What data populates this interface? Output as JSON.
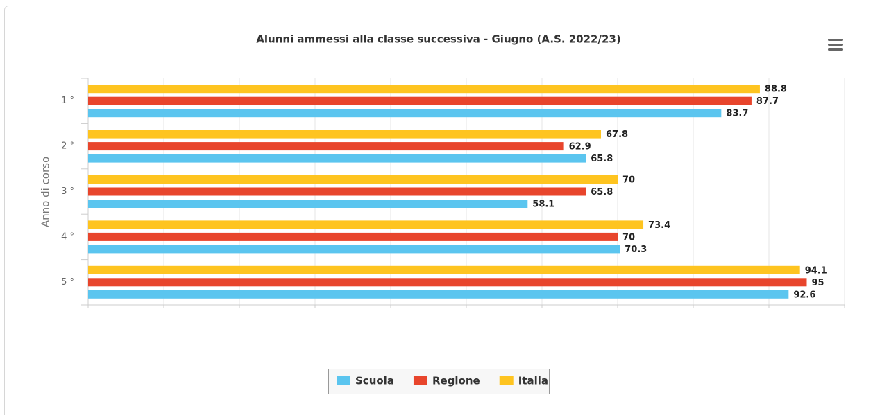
{
  "chart_data": {
    "type": "bar",
    "orientation": "horizontal",
    "title": "Alunni ammessi alla classe successiva - Giugno (A.S. 2022/23)",
    "y_label": "Anno di corso",
    "categories": [
      "1 °",
      "2 °",
      "3 °",
      "4 °",
      "5 °"
    ],
    "series": [
      {
        "name": "Scuola",
        "color": "#5bc5ef",
        "values": [
          83.7,
          65.8,
          58.1,
          70.3,
          92.6
        ]
      },
      {
        "name": "Regione",
        "color": "#e8452c",
        "values": [
          87.7,
          62.9,
          65.8,
          70,
          95
        ]
      },
      {
        "name": "Italia",
        "color": "#fec420",
        "values": [
          88.8,
          67.8,
          70,
          73.4,
          94.1
        ]
      }
    ],
    "xlim": [
      0,
      100
    ],
    "xticks": [
      0,
      10,
      20,
      30,
      40,
      50,
      60,
      70,
      80,
      90,
      100
    ],
    "grid": true,
    "legend": "bottom"
  }
}
